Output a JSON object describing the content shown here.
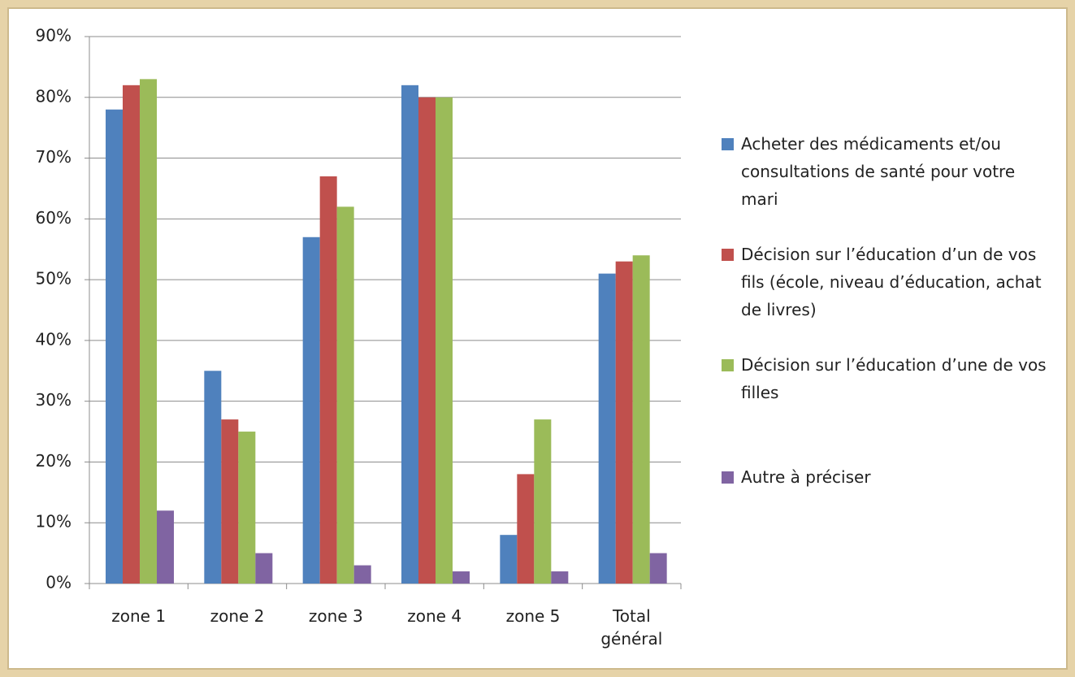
{
  "chart_data": {
    "type": "bar",
    "categories": [
      "zone 1",
      "zone 2",
      "zone 3",
      "zone 4",
      "zone 5",
      "Total général"
    ],
    "series": [
      {
        "name": "Acheter des médicaments et/ou consultations de santé pour votre mari",
        "color": "#4f81bd",
        "values": [
          78,
          35,
          57,
          82,
          8,
          51
        ]
      },
      {
        "name": "Décision sur l’éducation d’un de vos fils (école, niveau d’éducation, achat de livres)",
        "color": "#c0504d",
        "values": [
          82,
          27,
          67,
          80,
          18,
          53
        ]
      },
      {
        "name": "Décision sur l’éducation d’une de vos filles",
        "color": "#9bbb59",
        "values": [
          83,
          25,
          62,
          80,
          27,
          54
        ]
      },
      {
        "name": "Autre à préciser",
        "color": "#8064a2",
        "values": [
          12,
          5,
          3,
          2,
          2,
          5
        ]
      }
    ],
    "ylim": [
      0,
      90
    ],
    "yticks": [
      {
        "value": 0,
        "label": "0%"
      },
      {
        "value": 10,
        "label": "10%"
      },
      {
        "value": 20,
        "label": "20%"
      },
      {
        "value": 30,
        "label": "30%"
      },
      {
        "value": 40,
        "label": "40%"
      },
      {
        "value": 50,
        "label": "50%"
      },
      {
        "value": 60,
        "label": "60%"
      },
      {
        "value": 70,
        "label": "70%"
      },
      {
        "value": 80,
        "label": "80%"
      },
      {
        "value": 90,
        "label": "90%"
      }
    ],
    "grid": true,
    "legend": "right"
  }
}
